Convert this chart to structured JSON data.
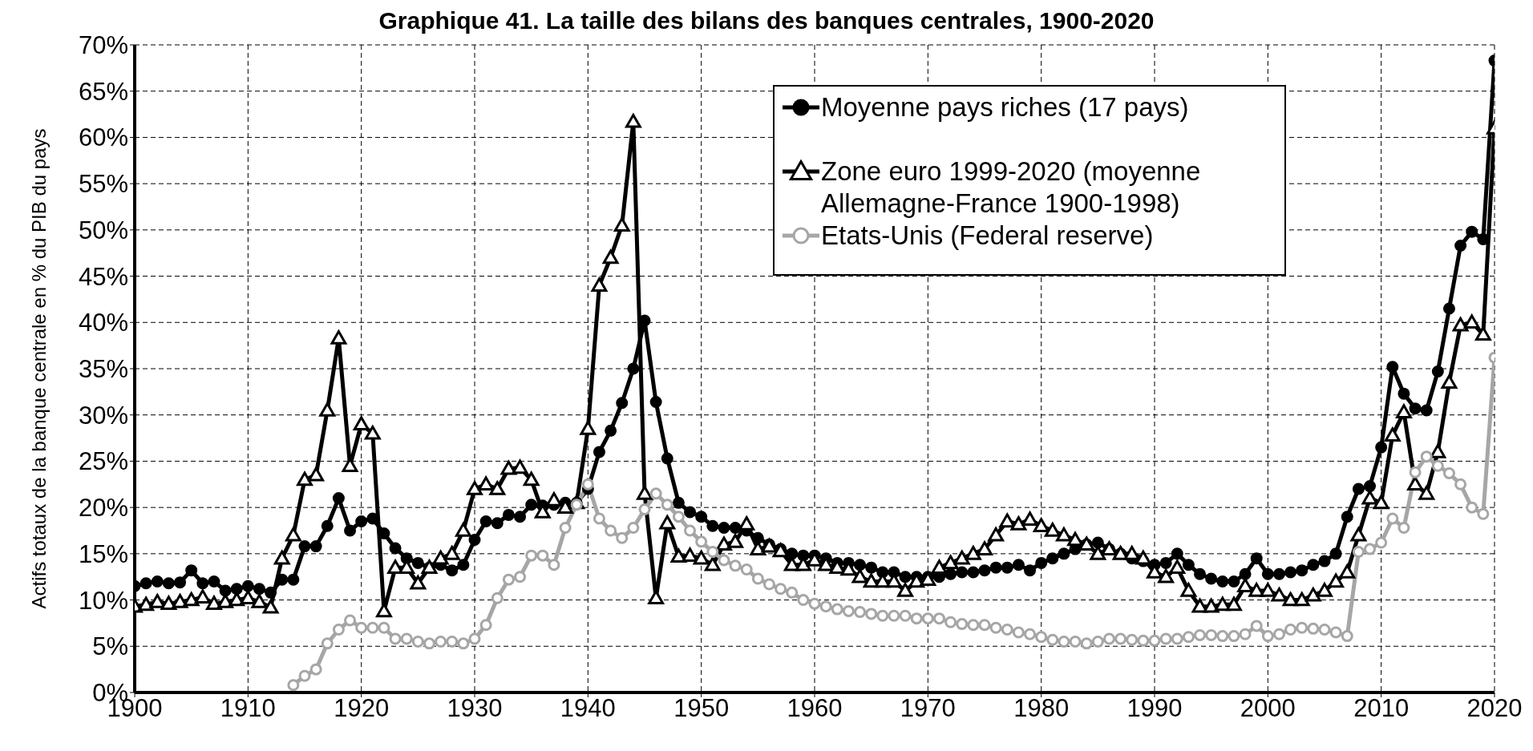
{
  "chart_data": {
    "type": "line",
    "title": "Graphique 41. La taille des bilans des banques centrales, 1900-2020",
    "ylabel": "Actifs totaux de la banque centrale en % du PIB du pays",
    "x": [
      1900,
      1901,
      1902,
      1903,
      1904,
      1905,
      1906,
      1907,
      1908,
      1909,
      1910,
      1911,
      1912,
      1913,
      1914,
      1915,
      1916,
      1917,
      1918,
      1919,
      1920,
      1921,
      1922,
      1923,
      1924,
      1925,
      1926,
      1927,
      1928,
      1929,
      1930,
      1931,
      1932,
      1933,
      1934,
      1935,
      1936,
      1937,
      1938,
      1939,
      1940,
      1941,
      1942,
      1943,
      1944,
      1945,
      1946,
      1947,
      1948,
      1949,
      1950,
      1951,
      1952,
      1953,
      1954,
      1955,
      1956,
      1957,
      1958,
      1959,
      1960,
      1961,
      1962,
      1963,
      1964,
      1965,
      1966,
      1967,
      1968,
      1969,
      1970,
      1971,
      1972,
      1973,
      1974,
      1975,
      1976,
      1977,
      1978,
      1979,
      1980,
      1981,
      1982,
      1983,
      1984,
      1985,
      1986,
      1987,
      1988,
      1989,
      1990,
      1991,
      1992,
      1993,
      1994,
      1995,
      1996,
      1997,
      1998,
      1999,
      2000,
      2001,
      2002,
      2003,
      2004,
      2005,
      2006,
      2007,
      2008,
      2009,
      2010,
      2011,
      2012,
      2013,
      2014,
      2015,
      2016,
      2017,
      2018,
      2019,
      2020
    ],
    "series": [
      {
        "name": "Moyenne pays riches (17 pays)",
        "color": "#000000",
        "marker": "circle",
        "values": [
          11.5,
          11.8,
          12,
          11.8,
          11.9,
          13.2,
          11.8,
          12,
          11,
          11.2,
          11.5,
          11.2,
          10.8,
          12.2,
          12.2,
          15.8,
          15.8,
          18,
          21,
          17.5,
          18.5,
          18.8,
          17.2,
          15.6,
          14.5,
          14,
          13.5,
          13.8,
          13.2,
          13.8,
          16.5,
          18.5,
          18.3,
          19.2,
          19,
          20.3,
          20.2,
          20.3,
          20.5,
          20.5,
          22,
          26,
          28.3,
          31.3,
          35,
          40.2,
          31.4,
          25.3,
          20.5,
          19.5,
          19,
          18,
          17.8,
          17.8,
          17.5,
          16.7,
          16,
          15.5,
          15,
          14.8,
          14.8,
          14.5,
          14,
          14,
          13.8,
          13.5,
          13,
          13,
          12.5,
          12.5,
          12.5,
          12.5,
          12.8,
          13,
          13,
          13.2,
          13.5,
          13.5,
          13.8,
          13.2,
          14,
          14.5,
          15,
          15.5,
          16,
          16.2,
          15.5,
          15,
          14.5,
          14.2,
          13.8,
          14,
          15,
          13.8,
          12.8,
          12.3,
          12,
          12,
          12.8,
          14.5,
          12.8,
          12.8,
          13,
          13.2,
          13.8,
          14.2,
          15,
          19,
          22,
          22.3,
          26.5,
          35.2,
          32.3,
          30.7,
          30.5,
          34.7,
          41.5,
          48.3,
          49.8,
          49,
          68.3
        ]
      },
      {
        "name": "Zone euro 1999-2020 (moyenne Allemagne-France 1900-1998)",
        "color": "#000000",
        "marker": "triangle",
        "values": [
          9.3,
          9.5,
          9.8,
          9.6,
          9.8,
          10,
          10.3,
          9.6,
          9.8,
          10,
          10.2,
          9.8,
          9.2,
          14.5,
          17,
          23,
          23.5,
          30.5,
          38.3,
          24.5,
          29,
          28,
          8.8,
          13.5,
          13.5,
          11.8,
          13.5,
          14.5,
          15,
          17.5,
          22,
          22.5,
          22,
          24.2,
          24.3,
          23,
          19.5,
          20.8,
          20,
          20.5,
          28.5,
          44,
          47,
          50.5,
          61.7,
          21.5,
          10.2,
          18.3,
          14.7,
          14.8,
          14.5,
          13.8,
          16,
          16.3,
          18.2,
          15.5,
          15.8,
          15.3,
          13.8,
          13.8,
          14.3,
          13.8,
          13.5,
          13.3,
          12.5,
          12,
          12,
          12,
          11,
          12,
          12.2,
          13.5,
          14,
          14.5,
          15,
          15.5,
          17,
          18.5,
          18.2,
          18.7,
          18,
          17.5,
          17,
          16.5,
          16,
          15,
          15.5,
          15,
          15,
          14.5,
          13,
          12.5,
          13.5,
          11,
          9.3,
          9.3,
          9.5,
          9.5,
          11.5,
          11,
          11,
          10.5,
          10,
          10,
          10.5,
          11,
          12,
          13,
          17,
          21,
          20.5,
          27.8,
          30.3,
          22.5,
          21.5,
          26,
          33.5,
          39.7,
          40,
          38.7,
          61
        ]
      },
      {
        "name": "Etats-Unis (Federal reserve)",
        "color": "#a6a6a6",
        "marker": "circle",
        "values": [
          null,
          null,
          null,
          null,
          null,
          null,
          null,
          null,
          null,
          null,
          null,
          null,
          null,
          null,
          0.8,
          1.8,
          2.5,
          5.3,
          6.8,
          7.8,
          7,
          7,
          7,
          5.8,
          5.8,
          5.5,
          5.3,
          5.5,
          5.5,
          5.3,
          5.8,
          7.3,
          10.2,
          12.2,
          12.5,
          14.8,
          14.8,
          13.8,
          17.8,
          20.3,
          22.5,
          18.8,
          17.5,
          16.7,
          17.8,
          19.8,
          21.5,
          20.3,
          19,
          17.5,
          16.3,
          15.2,
          14.3,
          13.7,
          13.3,
          12.3,
          11.7,
          11.2,
          10.8,
          10,
          9.6,
          9.3,
          9,
          8.8,
          8.7,
          8.5,
          8.3,
          8.3,
          8.3,
          8,
          8,
          8,
          7.6,
          7.4,
          7.3,
          7.3,
          7,
          6.8,
          6.5,
          6.3,
          6,
          5.7,
          5.5,
          5.5,
          5.3,
          5.5,
          5.8,
          5.8,
          5.7,
          5.6,
          5.6,
          5.8,
          5.8,
          6,
          6.2,
          6.2,
          6.1,
          6.1,
          6.3,
          7.2,
          6.1,
          6.3,
          6.8,
          7,
          6.9,
          6.8,
          6.5,
          6.1,
          15.2,
          15.5,
          16.2,
          18.8,
          17.8,
          23.8,
          25.5,
          24.5,
          23.7,
          22.5,
          20,
          19.3,
          36.2
        ]
      }
    ],
    "xlim": [
      1900,
      2020
    ],
    "xticks": [
      1900,
      1910,
      1920,
      1930,
      1940,
      1950,
      1960,
      1970,
      1980,
      1990,
      2000,
      2010,
      2020
    ],
    "ylim": [
      0,
      70
    ],
    "yticks": [
      {
        "value": 0,
        "label": "0%"
      },
      {
        "value": 5,
        "label": "5%"
      },
      {
        "value": 10,
        "label": "10%"
      },
      {
        "value": 15,
        "label": "15%"
      },
      {
        "value": 20,
        "label": "20%"
      },
      {
        "value": 25,
        "label": "25%"
      },
      {
        "value": 30,
        "label": "30%"
      },
      {
        "value": 35,
        "label": "35%"
      },
      {
        "value": 40,
        "label": "40%"
      },
      {
        "value": 45,
        "label": "45%"
      },
      {
        "value": 50,
        "label": "50%"
      },
      {
        "value": 55,
        "label": "55%"
      },
      {
        "value": 60,
        "label": "60%"
      },
      {
        "value": 65,
        "label": "65%"
      },
      {
        "value": 70,
        "label": "70%"
      }
    ],
    "grid": true,
    "legend": "top right",
    "line_style": "solid"
  }
}
